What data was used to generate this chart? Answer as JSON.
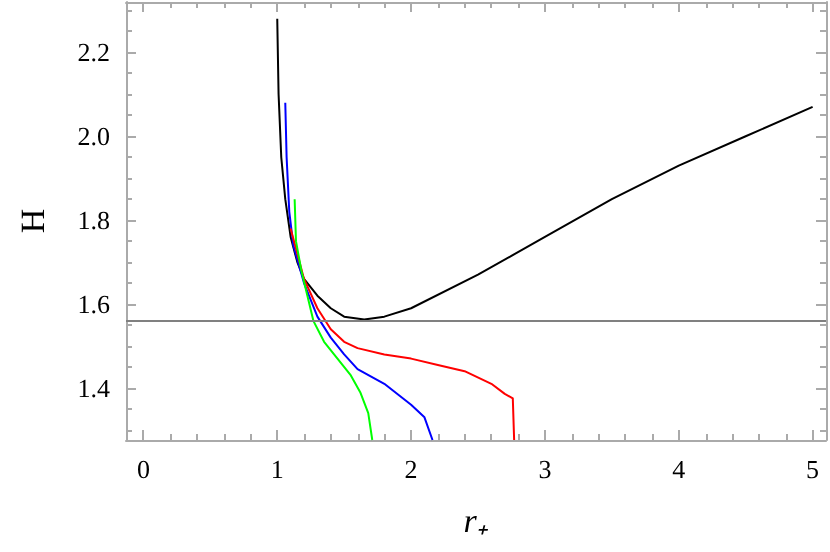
{
  "chart_data": {
    "type": "line",
    "xlabel": "r₊",
    "ylabel": "H",
    "xlim": [
      -0.13,
      5.1
    ],
    "ylim": [
      1.276,
      2.32
    ],
    "xticks": [
      0,
      1,
      2,
      3,
      4,
      5
    ],
    "yticks": [
      1.4,
      1.6,
      1.8,
      {
        "value": 2,
        "label": "2.0"
      },
      2.2
    ],
    "grid": false,
    "marker": "none",
    "line_style": "solid",
    "ref_lines": [
      {
        "axis": "y",
        "value": 1.56,
        "color": "#808080"
      }
    ],
    "series": [
      {
        "color": "#000000",
        "x": [
          1.0,
          1.01,
          1.03,
          1.06,
          1.1,
          1.15,
          1.2,
          1.3,
          1.4,
          1.5,
          1.65,
          1.8,
          2.0,
          2.5,
          3.0,
          3.5,
          4.0,
          4.5,
          5.0
        ],
        "values": [
          2.28,
          2.1,
          1.95,
          1.85,
          1.76,
          1.7,
          1.66,
          1.62,
          1.59,
          1.57,
          1.563,
          1.57,
          1.59,
          1.67,
          1.76,
          1.85,
          1.93,
          2.0,
          2.07
        ]
      },
      {
        "color": "#0000ff",
        "x": [
          1.06,
          1.07,
          1.09,
          1.12,
          1.2,
          1.3,
          1.4,
          1.5,
          1.6,
          1.8,
          2.0,
          2.1,
          2.16
        ],
        "values": [
          2.08,
          1.95,
          1.82,
          1.74,
          1.65,
          1.57,
          1.52,
          1.48,
          1.445,
          1.41,
          1.36,
          1.33,
          1.276
        ]
      },
      {
        "color": "#ff0000",
        "x": [
          1.1,
          1.2,
          1.3,
          1.4,
          1.5,
          1.6,
          1.8,
          2.0,
          2.2,
          2.4,
          2.6,
          2.7,
          2.76,
          2.77
        ],
        "values": [
          1.78,
          1.66,
          1.59,
          1.54,
          1.51,
          1.495,
          1.48,
          1.47,
          1.455,
          1.44,
          1.41,
          1.386,
          1.375,
          1.276
        ]
      },
      {
        "color": "#00ff00",
        "x": [
          1.13,
          1.14,
          1.18,
          1.27,
          1.35,
          1.45,
          1.55,
          1.62,
          1.68,
          1.71
        ],
        "values": [
          1.85,
          1.75,
          1.68,
          1.56,
          1.51,
          1.47,
          1.43,
          1.39,
          1.34,
          1.276
        ]
      }
    ]
  }
}
